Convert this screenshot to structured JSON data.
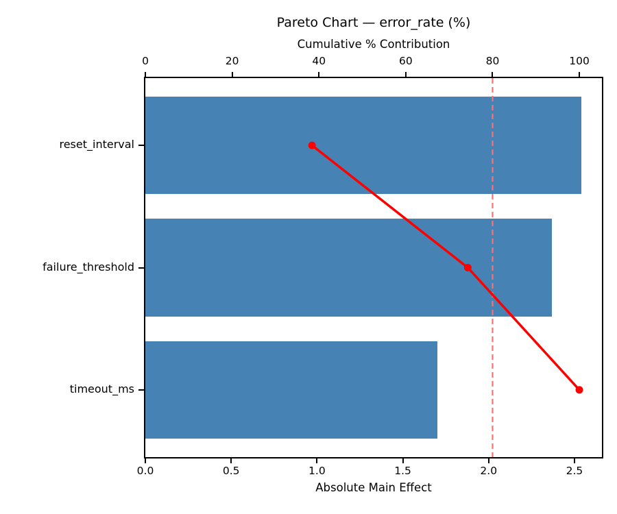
{
  "chart_data": {
    "type": "bar",
    "subtype": "pareto",
    "orientation": "horizontal",
    "title": "Pareto Chart — error_rate (%)",
    "top_axis_label": "Cumulative % Contribution",
    "xlabel": "Absolute Main Effect",
    "ylabel": "",
    "categories": [
      "reset_interval",
      "failure_threshold",
      "timeout_ms"
    ],
    "series": [
      {
        "name": "Absolute Main Effect",
        "type": "bar",
        "axis": "bottom",
        "values": [
          2.54,
          2.37,
          1.7
        ]
      },
      {
        "name": "Cumulative % Contribution",
        "type": "line",
        "axis": "top",
        "values": [
          38.4,
          74.3,
          100.0
        ]
      }
    ],
    "bottom_axis": {
      "ticks": [
        0,
        0.5,
        1.0,
        1.5,
        2.0,
        2.5
      ],
      "tick_labels": [
        "0.0",
        "0.5",
        "1.0",
        "1.5",
        "2.0",
        "2.5"
      ],
      "lim": [
        0,
        2.66
      ]
    },
    "top_axis": {
      "ticks": [
        0,
        20,
        40,
        60,
        80,
        100
      ],
      "tick_labels": [
        "0",
        "20",
        "40",
        "60",
        "80",
        "100"
      ],
      "lim": [
        0,
        105.2
      ]
    },
    "threshold": {
      "value": 80,
      "axis": "top",
      "style": "dashed"
    },
    "grid": false,
    "legend": false,
    "colors": {
      "bar": "#4682B4",
      "line": "#FF0000",
      "marker": "#FF0000",
      "threshold_line": "#FF7070",
      "text": "#000000",
      "spines": "#000000",
      "background": "#FFFFFF"
    }
  }
}
